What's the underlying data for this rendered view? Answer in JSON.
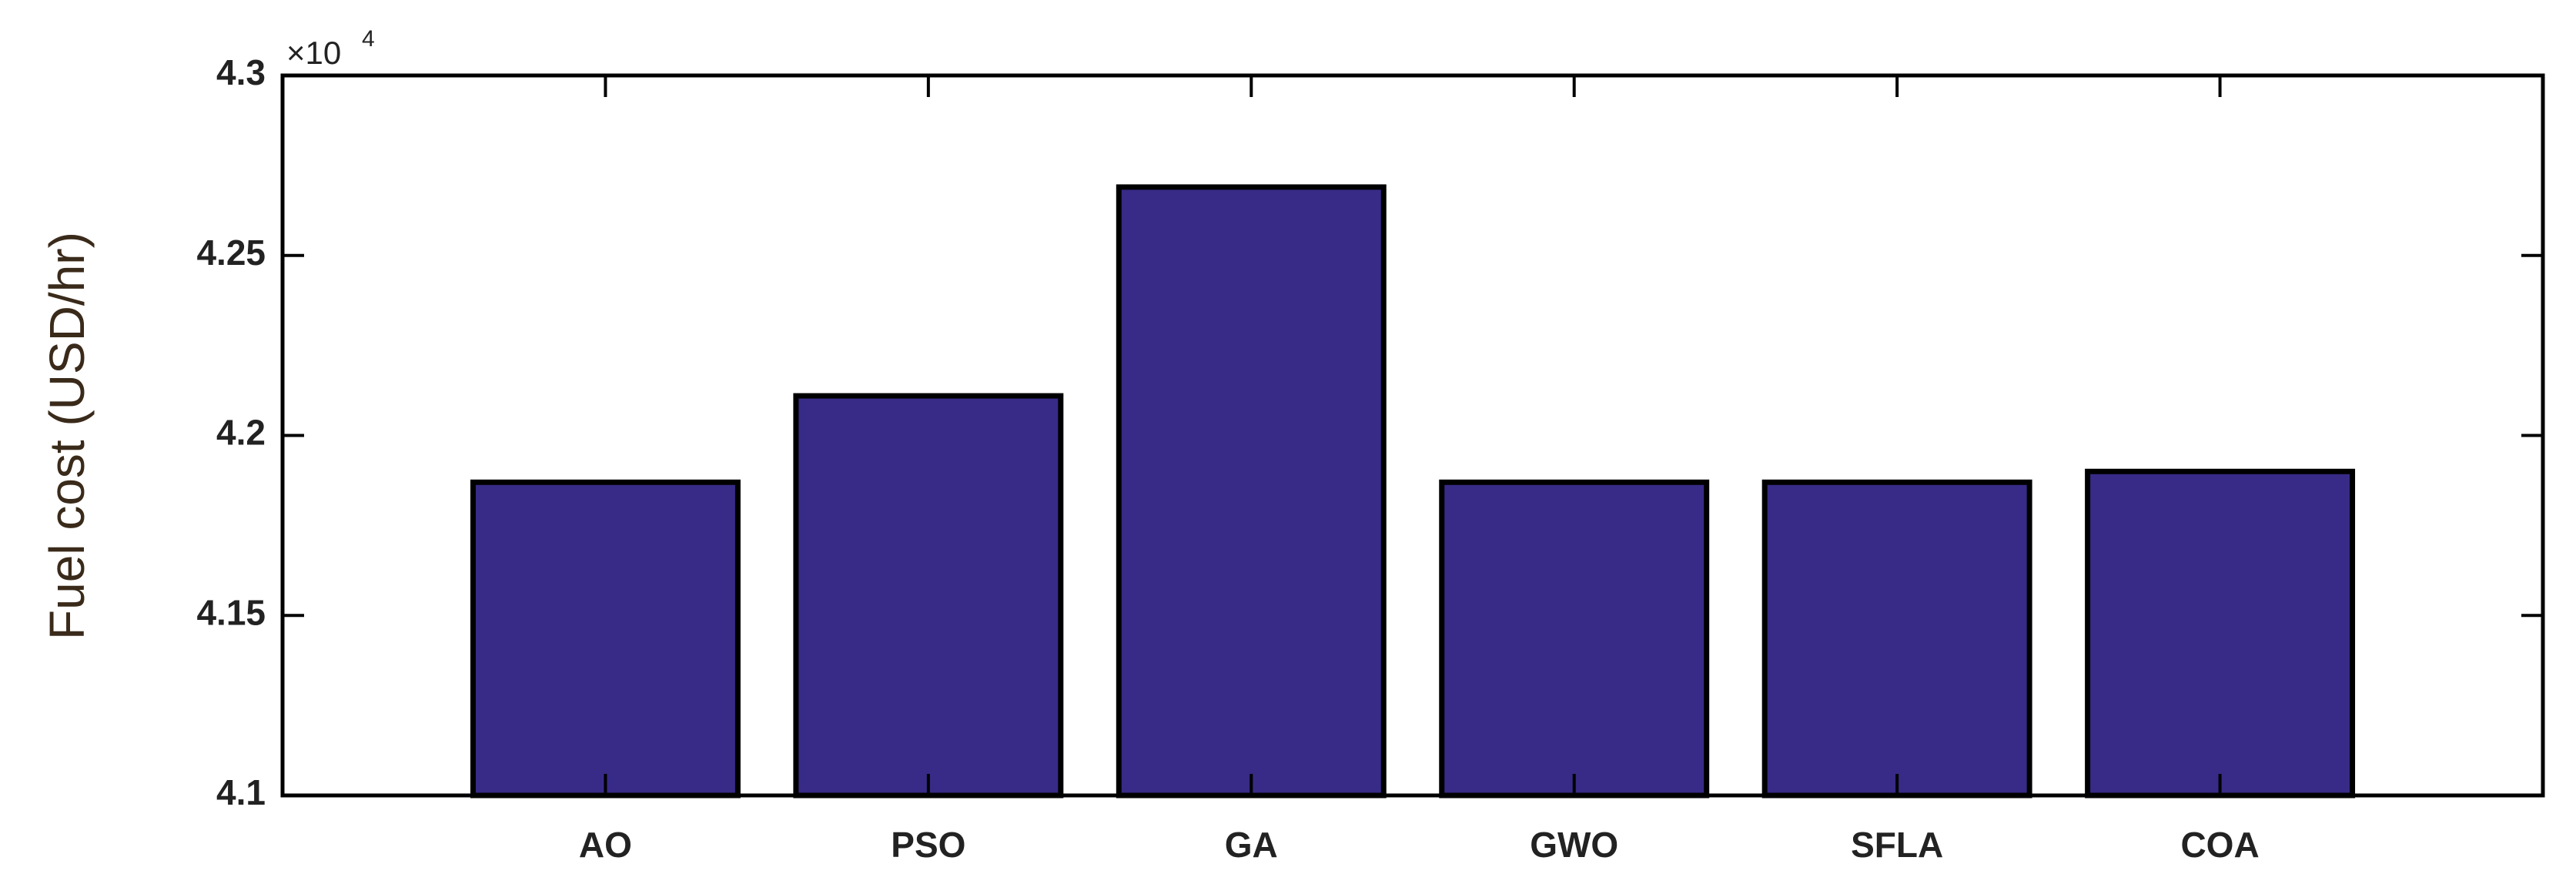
{
  "chart_data": {
    "type": "bar",
    "y_label": "Fuel cost (USD/hr)",
    "y_multiplier": {
      "base": "×10",
      "exponent": "4"
    },
    "categories": [
      "AO",
      "PSO",
      "GA",
      "GWO",
      "SFLA",
      "COA"
    ],
    "values": [
      4.187,
      4.211,
      4.269,
      4.187,
      4.187,
      4.19
    ],
    "color": "#372b87",
    "ylim": [
      4.1,
      4.3
    ],
    "yticks": [
      4.1,
      4.15,
      4.2,
      4.25,
      4.3
    ],
    "grid": false
  }
}
